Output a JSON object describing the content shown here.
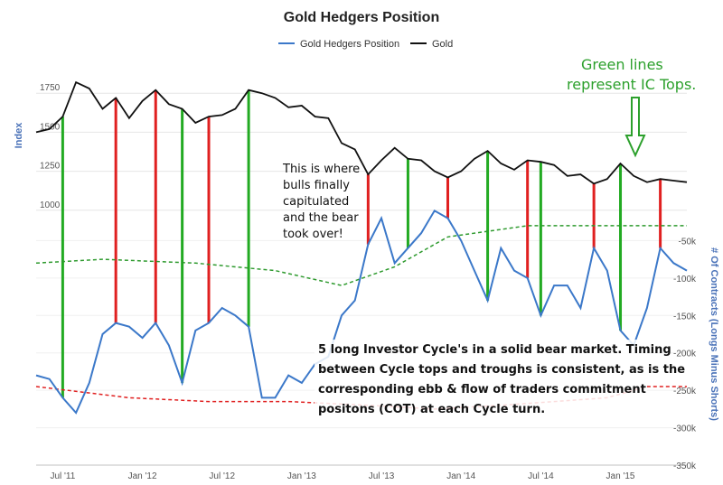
{
  "chart_data": {
    "type": "line",
    "title": "Gold Hedgers Position",
    "legend": {
      "position": "top-center",
      "items": [
        {
          "name": "Gold Hedgers Position",
          "color": "#3b78c9"
        },
        {
          "name": "Gold",
          "color": "#111111"
        }
      ]
    },
    "x_ticks": [
      "Jul '11",
      "Jan '12",
      "Jul '12",
      "Jan '13",
      "Jul '13",
      "Jan '14",
      "Jul '14",
      "Jan '15"
    ],
    "x_range": [
      "2011-05",
      "2015-06"
    ],
    "left_axis": {
      "title": "Index",
      "ticks": [
        "1000",
        "1250",
        "1500",
        "1750"
      ],
      "range": [
        750,
        2000
      ]
    },
    "right_axis": {
      "title": "# Of Contracts (Longs Minus Shorts)",
      "ticks": [
        "-50k",
        "-100k",
        "-150k",
        "-200k",
        "-250k",
        "-300k",
        "-350k"
      ],
      "range": [
        -350000,
        0
      ]
    },
    "gold": {
      "name": "Gold",
      "color": "#111111",
      "points": [
        [
          "2011-05",
          1500
        ],
        [
          "2011-06",
          1520
        ],
        [
          "2011-07",
          1600
        ],
        [
          "2011-08",
          1820
        ],
        [
          "2011-09",
          1780
        ],
        [
          "2011-10",
          1650
        ],
        [
          "2011-11",
          1720
        ],
        [
          "2011-12",
          1590
        ],
        [
          "2012-01",
          1700
        ],
        [
          "2012-02",
          1770
        ],
        [
          "2012-03",
          1680
        ],
        [
          "2012-04",
          1650
        ],
        [
          "2012-05",
          1560
        ],
        [
          "2012-06",
          1600
        ],
        [
          "2012-07",
          1610
        ],
        [
          "2012-08",
          1650
        ],
        [
          "2012-09",
          1770
        ],
        [
          "2012-10",
          1750
        ],
        [
          "2012-11",
          1720
        ],
        [
          "2012-12",
          1660
        ],
        [
          "2013-01",
          1670
        ],
        [
          "2013-02",
          1600
        ],
        [
          "2013-03",
          1590
        ],
        [
          "2013-04",
          1430
        ],
        [
          "2013-05",
          1390
        ],
        [
          "2013-06",
          1230
        ],
        [
          "2013-07",
          1320
        ],
        [
          "2013-08",
          1400
        ],
        [
          "2013-09",
          1330
        ],
        [
          "2013-10",
          1320
        ],
        [
          "2013-11",
          1250
        ],
        [
          "2013-12",
          1210
        ],
        [
          "2014-01",
          1250
        ],
        [
          "2014-02",
          1330
        ],
        [
          "2014-03",
          1380
        ],
        [
          "2014-04",
          1300
        ],
        [
          "2014-05",
          1260
        ],
        [
          "2014-06",
          1320
        ],
        [
          "2014-07",
          1310
        ],
        [
          "2014-08",
          1290
        ],
        [
          "2014-09",
          1220
        ],
        [
          "2014-10",
          1230
        ],
        [
          "2014-11",
          1170
        ],
        [
          "2014-12",
          1200
        ],
        [
          "2015-01",
          1300
        ],
        [
          "2015-02",
          1220
        ],
        [
          "2015-03",
          1180
        ],
        [
          "2015-04",
          1200
        ],
        [
          "2015-05",
          1190
        ],
        [
          "2015-06",
          1180
        ]
      ]
    },
    "hedgers": {
      "name": "Gold Hedgers Position",
      "color": "#3b78c9",
      "points": [
        [
          "2011-05",
          -230000
        ],
        [
          "2011-06",
          -235000
        ],
        [
          "2011-07",
          -260000
        ],
        [
          "2011-08",
          -280000
        ],
        [
          "2011-09",
          -240000
        ],
        [
          "2011-10",
          -175000
        ],
        [
          "2011-11",
          -160000
        ],
        [
          "2011-12",
          -165000
        ],
        [
          "2012-01",
          -180000
        ],
        [
          "2012-02",
          -160000
        ],
        [
          "2012-03",
          -190000
        ],
        [
          "2012-04",
          -240000
        ],
        [
          "2012-05",
          -170000
        ],
        [
          "2012-06",
          -160000
        ],
        [
          "2012-07",
          -140000
        ],
        [
          "2012-08",
          -150000
        ],
        [
          "2012-09",
          -165000
        ],
        [
          "2012-10",
          -260000
        ],
        [
          "2012-11",
          -260000
        ],
        [
          "2012-12",
          -230000
        ],
        [
          "2013-01",
          -240000
        ],
        [
          "2013-02",
          -215000
        ],
        [
          "2013-03",
          -205000
        ],
        [
          "2013-04",
          -150000
        ],
        [
          "2013-05",
          -130000
        ],
        [
          "2013-06",
          -55000
        ],
        [
          "2013-07",
          -20000
        ],
        [
          "2013-08",
          -80000
        ],
        [
          "2013-09",
          -60000
        ],
        [
          "2013-10",
          -40000
        ],
        [
          "2013-11",
          -10000
        ],
        [
          "2013-12",
          -20000
        ],
        [
          "2014-01",
          -50000
        ],
        [
          "2014-02",
          -90000
        ],
        [
          "2014-03",
          -130000
        ],
        [
          "2014-04",
          -60000
        ],
        [
          "2014-05",
          -90000
        ],
        [
          "2014-06",
          -100000
        ],
        [
          "2014-07",
          -150000
        ],
        [
          "2014-08",
          -110000
        ],
        [
          "2014-09",
          -110000
        ],
        [
          "2014-10",
          -140000
        ],
        [
          "2014-11",
          -60000
        ],
        [
          "2014-12",
          -90000
        ],
        [
          "2015-01",
          -170000
        ],
        [
          "2015-02",
          -190000
        ],
        [
          "2015-03",
          -140000
        ],
        [
          "2015-04",
          -60000
        ],
        [
          "2015-05",
          -80000
        ],
        [
          "2015-06",
          -90000
        ]
      ]
    },
    "green_dashed_line": {
      "color": "#2e9a2e",
      "points": [
        [
          "2011-05",
          -80000
        ],
        [
          "2011-10",
          -75000
        ],
        [
          "2012-05",
          -80000
        ],
        [
          "2012-11",
          -90000
        ],
        [
          "2013-04",
          -110000
        ],
        [
          "2013-08",
          -85000
        ],
        [
          "2013-12",
          -45000
        ],
        [
          "2014-06",
          -30000
        ],
        [
          "2015-01",
          -30000
        ],
        [
          "2015-06",
          -30000
        ]
      ]
    },
    "red_dashed_line": {
      "color": "#e02020",
      "points": [
        [
          "2011-05",
          -245000
        ],
        [
          "2011-12",
          -260000
        ],
        [
          "2012-06",
          -265000
        ],
        [
          "2012-12",
          -265000
        ],
        [
          "2013-06",
          -270000
        ],
        [
          "2013-11",
          -275000
        ],
        [
          "2014-04",
          -270000
        ],
        [
          "2014-08",
          -265000
        ],
        [
          "2014-12",
          -260000
        ],
        [
          "2015-03",
          -245000
        ],
        [
          "2015-06",
          -245000
        ]
      ]
    },
    "ic_top_lines": [
      "2011-07",
      "2012-04",
      "2012-09",
      "2013-09",
      "2014-03",
      "2014-07",
      "2015-01"
    ],
    "trough_lines": [
      "2011-11",
      "2012-02",
      "2012-06",
      "2013-06",
      "2013-12",
      "2014-06",
      "2014-11",
      "2015-04"
    ],
    "annotations": {
      "green_note_line1": "Green lines",
      "green_note_line2": "represent IC Tops.",
      "bulls_note": [
        "This is where",
        "bulls finally",
        "capitulated",
        "and the bear",
        "took over!"
      ],
      "cycle_note": [
        "5 long Investor Cycle's in a solid bear market.  Timing",
        "between Cycle tops and troughs is consistent, as is the",
        "corresponding ebb & flow of traders commitment",
        "positons (COT) at each Cycle turn."
      ]
    },
    "grid": true
  }
}
